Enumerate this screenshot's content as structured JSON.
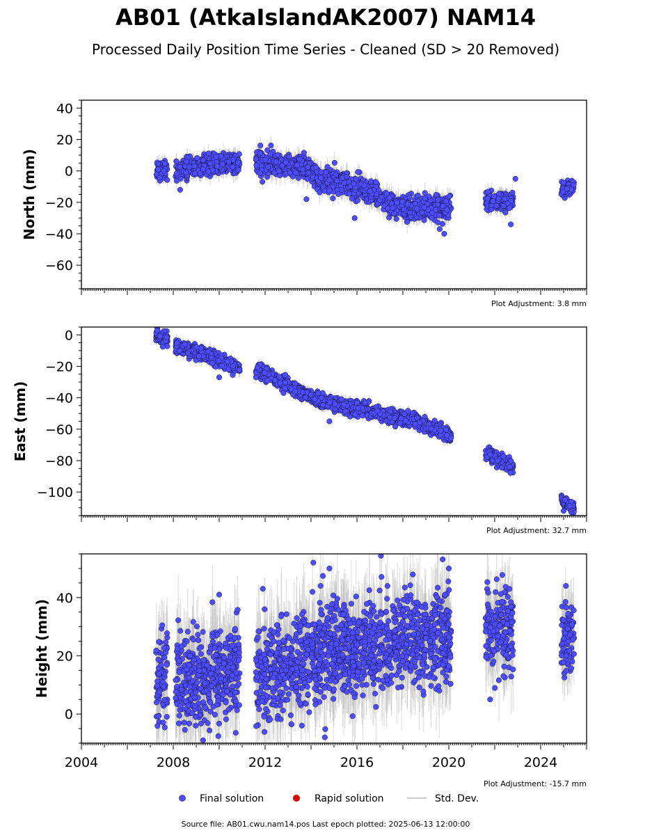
{
  "title": "AB01 (AtkaIslandAK2007) NAM14",
  "subtitle": "Processed Daily Position Time Series - Cleaned (SD > 20 Removed)",
  "footer": "Source file: AB01.cwu.nam14.pos  Last epoch plotted: 2025-06-13 12:00:00",
  "legend": {
    "final": "Final solution",
    "rapid": "Rapid solution",
    "std": "Std. Dev."
  },
  "colors": {
    "final": "#4d4dff",
    "rapid": "#e00000",
    "std": "#bbbbbb",
    "marker_edge": "#111133"
  },
  "chart_data": [
    {
      "type": "scatter",
      "component": "north",
      "ylabel": "North (mm)",
      "adjustment": "Plot Adjustment: 3.8 mm",
      "xlim": [
        2004,
        2026
      ],
      "ylim": [
        -75,
        45
      ],
      "yticks": [
        -60,
        -40,
        -20,
        0,
        20,
        40
      ],
      "ytick_labels": [
        "−60",
        "−40",
        "−20",
        "0",
        "20",
        "40"
      ],
      "show_xtick_labels": false,
      "segments": [
        {
          "start": 2007.25,
          "end": 2007.75,
          "trend": [
            [
              2007.25,
              1
            ],
            [
              2007.75,
              1
            ]
          ],
          "scatter": 3
        },
        {
          "start": 2008.1,
          "end": 2010.9,
          "trend": [
            [
              2008.1,
              0
            ],
            [
              2009.0,
              2
            ],
            [
              2010.0,
              5
            ],
            [
              2010.9,
              5
            ]
          ],
          "scatter": 3
        },
        {
          "start": 2011.6,
          "end": 2020.1,
          "trend": [
            [
              2011.6,
              5
            ],
            [
              2012.5,
              4
            ],
            [
              2013.5,
              4
            ],
            [
              2014.5,
              -6
            ],
            [
              2015.5,
              -7
            ],
            [
              2016.5,
              -13
            ],
            [
              2017.5,
              -22
            ],
            [
              2018.5,
              -24
            ],
            [
              2019.5,
              -24
            ],
            [
              2020.1,
              -24
            ]
          ],
          "scatter": 3.5
        },
        {
          "start": 2021.6,
          "end": 2022.8,
          "trend": [
            [
              2021.6,
              -21
            ],
            [
              2022.2,
              -19
            ],
            [
              2022.8,
              -18
            ]
          ],
          "scatter": 3
        },
        {
          "start": 2024.9,
          "end": 2025.45,
          "trend": [
            [
              2024.9,
              -13
            ],
            [
              2025.45,
              -9
            ]
          ],
          "scatter": 2
        }
      ],
      "outliers": [
        [
          2008.3,
          -12
        ],
        [
          2013.8,
          -18
        ],
        [
          2015.9,
          -30
        ],
        [
          2019.8,
          -40
        ],
        [
          2019.6,
          -37
        ],
        [
          2022.7,
          -34
        ],
        [
          2022.9,
          -5
        ]
      ]
    },
    {
      "type": "scatter",
      "component": "east",
      "ylabel": "East (mm)",
      "adjustment": "Plot Adjustment: 32.7 mm",
      "xlim": [
        2004,
        2026
      ],
      "ylim": [
        -115,
        5
      ],
      "yticks": [
        -100,
        -80,
        -60,
        -40,
        -20,
        0
      ],
      "ytick_labels": [
        "−100",
        "−80",
        "−60",
        "−40",
        "−20",
        "0"
      ],
      "show_xtick_labels": false,
      "segments": [
        {
          "start": 2007.25,
          "end": 2007.75,
          "trend": [
            [
              2007.25,
              -1
            ],
            [
              2007.75,
              -3
            ]
          ],
          "scatter": 2
        },
        {
          "start": 2008.1,
          "end": 2010.9,
          "trend": [
            [
              2008.1,
              -7
            ],
            [
              2009.0,
              -11
            ],
            [
              2010.0,
              -16
            ],
            [
              2010.9,
              -21
            ]
          ],
          "scatter": 2
        },
        {
          "start": 2011.6,
          "end": 2020.1,
          "trend": [
            [
              2011.6,
              -22
            ],
            [
              2012.5,
              -28
            ],
            [
              2013.5,
              -36
            ],
            [
              2014.5,
              -42
            ],
            [
              2015.5,
              -46
            ],
            [
              2016.5,
              -48
            ],
            [
              2017.5,
              -52
            ],
            [
              2018.5,
              -55
            ],
            [
              2019.5,
              -60
            ],
            [
              2020.1,
              -65
            ]
          ],
          "scatter": 2
        },
        {
          "start": 2021.6,
          "end": 2022.8,
          "trend": [
            [
              2021.6,
              -75
            ],
            [
              2022.2,
              -80
            ],
            [
              2022.8,
              -84
            ]
          ],
          "scatter": 2
        },
        {
          "start": 2024.9,
          "end": 2025.45,
          "trend": [
            [
              2024.9,
              -105
            ],
            [
              2025.45,
              -110
            ]
          ],
          "scatter": 1.5
        }
      ],
      "outliers": [
        [
          2010.0,
          -27
        ],
        [
          2014.8,
          -55
        ],
        [
          2012.8,
          -37
        ],
        [
          2025.0,
          -112
        ]
      ]
    },
    {
      "type": "scatter",
      "component": "height",
      "ylabel": "Height (mm)",
      "adjustment": "Plot Adjustment: -15.7 mm",
      "xlim": [
        2004,
        2026
      ],
      "ylim": [
        -10,
        55
      ],
      "yticks": [
        0,
        20,
        40
      ],
      "ytick_labels": [
        "0",
        "20",
        "40"
      ],
      "show_xtick_labels": true,
      "xticks": [
        2004,
        2008,
        2012,
        2016,
        2020,
        2024
      ],
      "segments": [
        {
          "start": 2007.25,
          "end": 2007.75,
          "trend": [
            [
              2007.25,
              10
            ],
            [
              2007.75,
              12
            ]
          ],
          "scatter": 8
        },
        {
          "start": 2008.1,
          "end": 2010.9,
          "trend": [
            [
              2008.1,
              12
            ],
            [
              2009.5,
              13
            ],
            [
              2010.9,
              15
            ]
          ],
          "scatter": 8
        },
        {
          "start": 2011.6,
          "end": 2020.1,
          "trend": [
            [
              2011.6,
              14
            ],
            [
              2013.0,
              16
            ],
            [
              2014.5,
              22
            ],
            [
              2016.0,
              22
            ],
            [
              2017.5,
              25
            ],
            [
              2019.0,
              26
            ],
            [
              2020.1,
              27
            ]
          ],
          "scatter": 8
        },
        {
          "start": 2021.6,
          "end": 2022.8,
          "trend": [
            [
              2021.6,
              28
            ],
            [
              2022.8,
              28
            ]
          ],
          "scatter": 7
        },
        {
          "start": 2024.9,
          "end": 2025.45,
          "trend": [
            [
              2024.9,
              25
            ],
            [
              2025.45,
              25
            ]
          ],
          "scatter": 6
        }
      ],
      "outliers": [
        [
          2009.3,
          -9
        ],
        [
          2010.0,
          41
        ],
        [
          2011.9,
          43
        ],
        [
          2014.1,
          52
        ],
        [
          2014.6,
          -8
        ],
        [
          2014.8,
          50
        ],
        [
          2020.0,
          50
        ],
        [
          2021.8,
          5
        ],
        [
          2025.1,
          44
        ]
      ]
    }
  ]
}
